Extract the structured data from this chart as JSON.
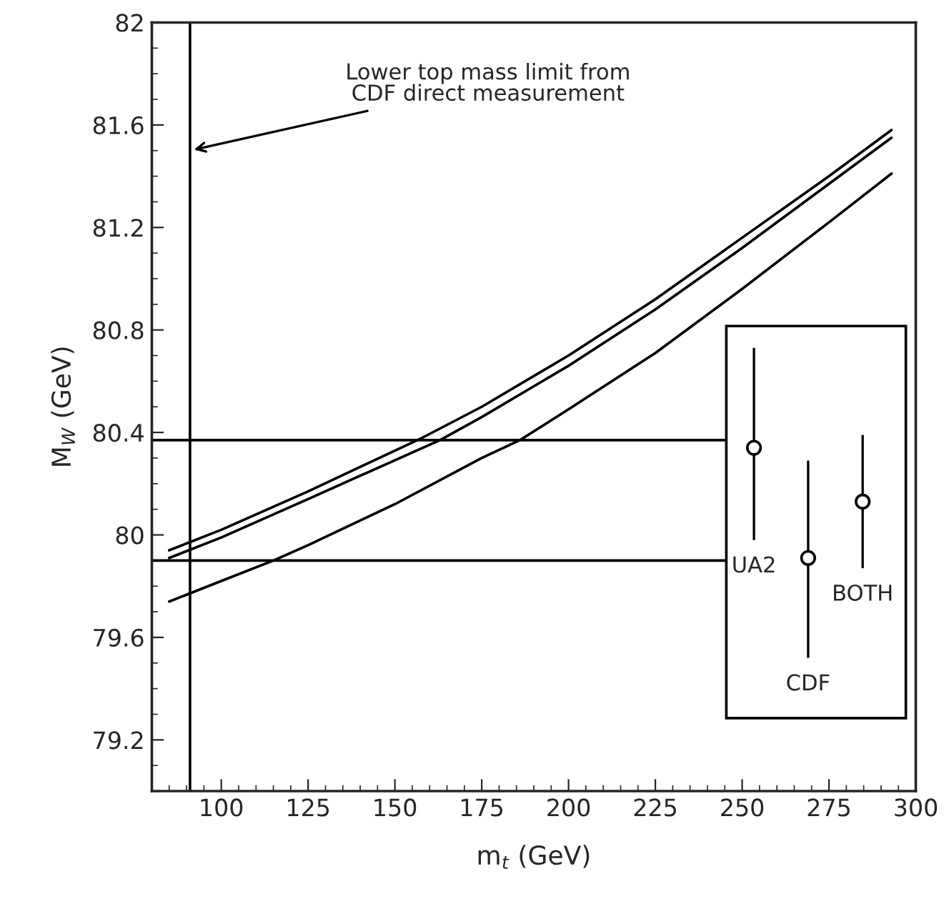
{
  "chart_data": {
    "type": "line",
    "xlabel": "m$_{t}$ (GeV)",
    "ylabel": "M$_{W}$ (GeV)",
    "xlim": [
      80,
      300
    ],
    "xticks": [
      100,
      125,
      150,
      175,
      200,
      225,
      250,
      275,
      300
    ],
    "ylim": [
      79,
      82
    ],
    "yticks": [
      79.2,
      79.6,
      80,
      80.4,
      80.8,
      81.2,
      81.6,
      82
    ],
    "grid": false,
    "legend": false,
    "series": [
      {
        "color": "#000000",
        "x": [
          85,
          100,
          125,
          158,
          175,
          200,
          225,
          250,
          275,
          293
        ],
        "values": [
          79.94,
          80.02,
          80.17,
          80.38,
          80.5,
          80.7,
          80.92,
          81.16,
          81.4,
          81.58
        ]
      },
      {
        "color": "#000000",
        "x": [
          85,
          100,
          125,
          163,
          175,
          200,
          225,
          250,
          275,
          293
        ],
        "values": [
          79.91,
          79.99,
          80.14,
          80.37,
          80.46,
          80.66,
          80.88,
          81.12,
          81.37,
          81.55
        ]
      },
      {
        "color": "#000000",
        "x": [
          85,
          100,
          115,
          125,
          150,
          175,
          186,
          200,
          225,
          250,
          275,
          293
        ],
        "values": [
          79.74,
          79.82,
          79.9,
          79.96,
          80.12,
          80.3,
          80.37,
          80.49,
          80.71,
          80.96,
          81.22,
          81.41
        ]
      },
      {
        "color": "#000000",
        "x": [
          80,
          245
        ],
        "values": [
          80.37,
          80.37
        ]
      },
      {
        "color": "#000000",
        "x": [
          80,
          245
        ],
        "values": [
          79.9,
          79.9
        ]
      },
      {
        "type": "scatter",
        "color": "#000000",
        "marker": "circle",
        "x": [
          253.4
        ],
        "values": [
          80.34
        ],
        "errors": [
          [
            79.98,
            80.73
          ]
        ]
      },
      {
        "type": "scatter",
        "color": "#000000",
        "marker": "circle",
        "x": [
          269
        ],
        "values": [
          79.91
        ],
        "errors": [
          [
            79.52,
            80.29
          ]
        ]
      },
      {
        "type": "scatter",
        "color": "#000000",
        "marker": "circle",
        "x": [
          284.7
        ],
        "values": [
          80.13
        ],
        "errors": [
          [
            79.87,
            80.39
          ]
        ]
      }
    ],
    "ref_lines": [
      {
        "axis": "x",
        "value": 91
      }
    ],
    "annotations": [
      {
        "text": "Lower top mass limit from\nCDF direct measurement",
        "x": 91,
        "y": 81.5
      },
      "UA2",
      "CDF",
      "BOTH"
    ]
  }
}
